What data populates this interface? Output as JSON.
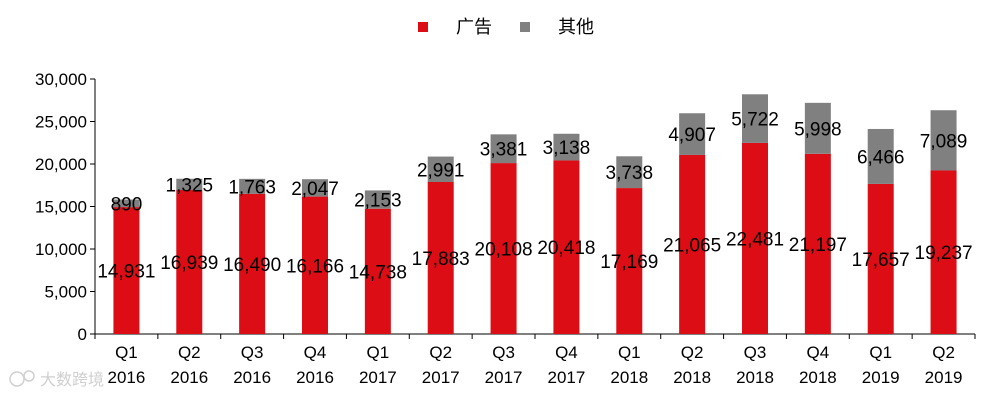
{
  "chart_data": {
    "type": "bar",
    "stacked": true,
    "title": "",
    "xlabel": "",
    "ylabel": "",
    "ylim": [
      0,
      30000
    ],
    "y_ticks": [
      "0",
      "5,000",
      "10,000",
      "15,000",
      "20,000",
      "25,000",
      "30,000"
    ],
    "y_tick_values": [
      0,
      5000,
      10000,
      15000,
      20000,
      25000,
      30000
    ],
    "categories": [
      [
        "Q1",
        "2016"
      ],
      [
        "Q2",
        "2016"
      ],
      [
        "Q3",
        "2016"
      ],
      [
        "Q4",
        "2016"
      ],
      [
        "Q1",
        "2017"
      ],
      [
        "Q2",
        "2017"
      ],
      [
        "Q3",
        "2017"
      ],
      [
        "Q4",
        "2017"
      ],
      [
        "Q1",
        "2018"
      ],
      [
        "Q2",
        "2018"
      ],
      [
        "Q3",
        "2018"
      ],
      [
        "Q4",
        "2018"
      ],
      [
        "Q1",
        "2019"
      ],
      [
        "Q2",
        "2019"
      ]
    ],
    "series": [
      {
        "name": "广告",
        "color": "#dc0d15",
        "values": [
          14931,
          16939,
          16490,
          16166,
          14738,
          17883,
          20108,
          20418,
          17169,
          21065,
          22481,
          21197,
          17657,
          19237
        ],
        "labels": [
          "14,931",
          "16,939",
          "16,490",
          "16,166",
          "14,738",
          "17,883",
          "20,108",
          "20,418",
          "17,169",
          "21,065",
          "22,481",
          "21,197",
          "17,657",
          "19,237"
        ]
      },
      {
        "name": "其他",
        "color": "#808080",
        "values": [
          890,
          1325,
          1763,
          2047,
          2153,
          2991,
          3381,
          3138,
          3738,
          4907,
          5722,
          5998,
          6466,
          7089
        ],
        "labels": [
          "890",
          "1,325",
          "1,763",
          "2,047",
          "2,153",
          "2,991",
          "3,381",
          "3,138",
          "3,738",
          "4,907",
          "5,722",
          "5,998",
          "6,466",
          "7,089"
        ]
      }
    ],
    "legend_position": "top-center",
    "grid": false
  },
  "watermark": {
    "text": "大数跨境"
  }
}
